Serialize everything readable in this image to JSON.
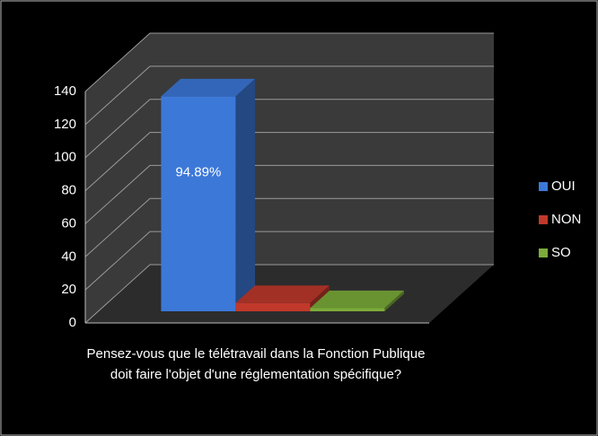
{
  "chart_data": {
    "type": "bar3d",
    "categories": [
      "Pensez-vous que le télétravail dans la Fonction Publique doit faire l'objet d'une réglementation spécifique?"
    ],
    "series": [
      {
        "name": "OUI",
        "color": "#3c78d8",
        "values": [
          130
        ]
      },
      {
        "name": "NON",
        "color": "#c0392b",
        "values": [
          5
        ]
      },
      {
        "name": "SO",
        "color": "#7cac3a",
        "values": [
          2
        ]
      }
    ],
    "annotation": "94.89%",
    "ylim": [
      0,
      140
    ],
    "yticks": [
      0,
      20,
      40,
      60,
      80,
      100,
      120,
      140
    ],
    "grid": true,
    "legend": "right"
  }
}
